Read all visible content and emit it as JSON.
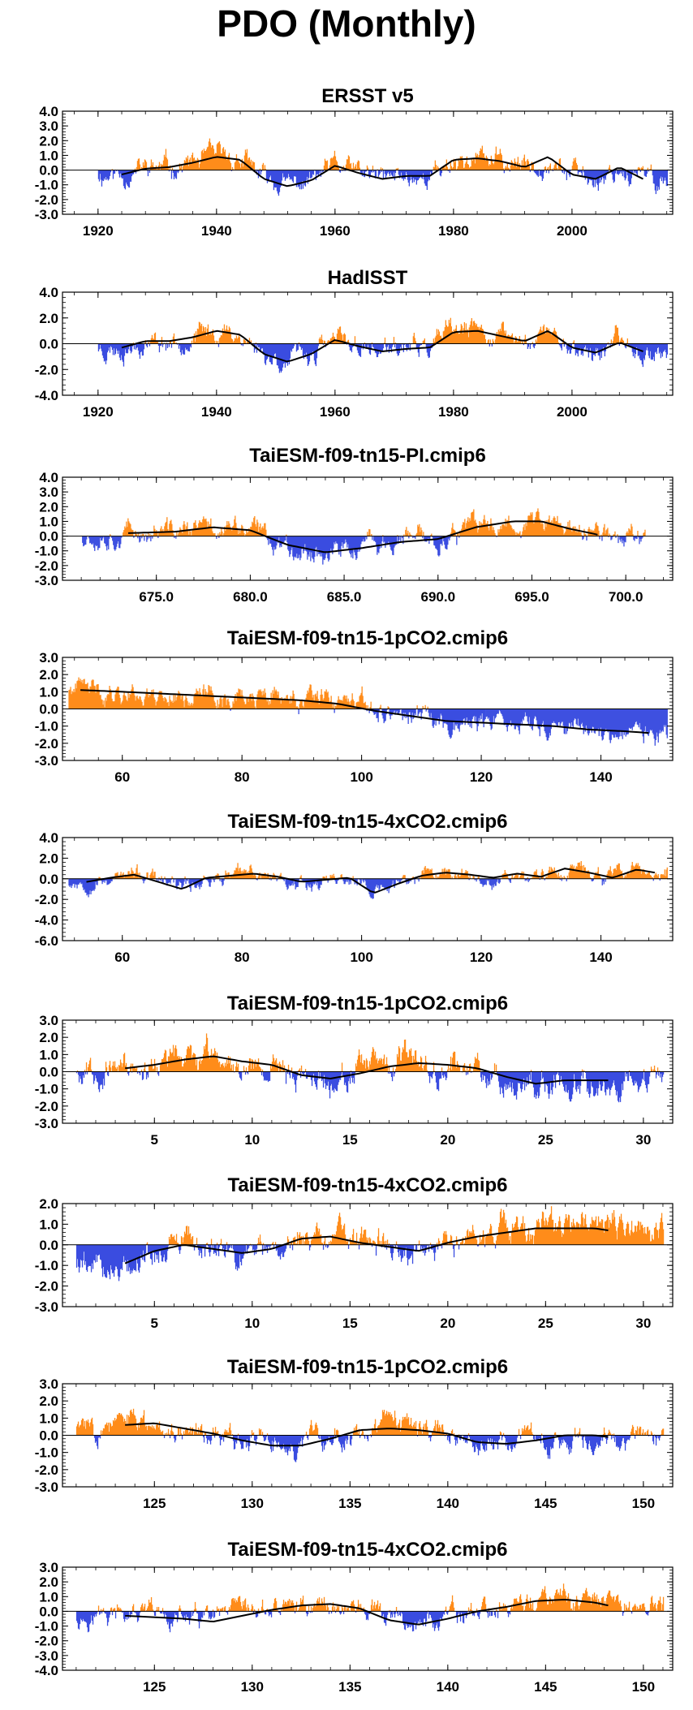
{
  "page": {
    "title": "PDO (Monthly)"
  },
  "colors": {
    "positive": "#ff8c1a",
    "negative": "#3a4de0",
    "smooth": "#000000",
    "axis": "#000000"
  },
  "chart_data": [
    {
      "type": "area",
      "title": "ERSST v5",
      "xlabel": "",
      "ylabel": "",
      "xlim": [
        1914,
        2017
      ],
      "ylim": [
        -3.0,
        4.0
      ],
      "yticks": [
        -3.0,
        -2.0,
        -1.0,
        0.0,
        1.0,
        2.0,
        3.0,
        4.0
      ],
      "ytick_labels": [
        "-3.0",
        "-2.0",
        "-1.0",
        "0.0",
        "1.0",
        "2.0",
        "3.0",
        "4.0"
      ],
      "xticks": [
        1920,
        1940,
        1960,
        1980,
        2000
      ],
      "xtick_labels": [
        "1920",
        "1940",
        "1960",
        "1980",
        "2000"
      ],
      "data_start": 1920,
      "data_end": 2016,
      "amplitude": 1.0,
      "seed": 11,
      "smooth_x": [
        1924,
        1928,
        1932,
        1936,
        1940,
        1944,
        1948,
        1952,
        1956,
        1960,
        1964,
        1968,
        1972,
        1976,
        1980,
        1984,
        1988,
        1992,
        1996,
        2000,
        2004,
        2008,
        2012
      ],
      "smooth_y": [
        -0.3,
        0.1,
        0.2,
        0.5,
        0.9,
        0.7,
        -0.6,
        -1.1,
        -0.7,
        0.3,
        -0.2,
        -0.6,
        -0.4,
        -0.4,
        0.7,
        0.8,
        0.6,
        0.2,
        0.9,
        -0.3,
        -0.6,
        0.2,
        -0.6
      ]
    },
    {
      "type": "area",
      "title": "HadISST",
      "xlabel": "",
      "ylabel": "",
      "xlim": [
        1914,
        2017
      ],
      "ylim": [
        -4.0,
        4.0
      ],
      "yticks": [
        -4.0,
        -2.0,
        0.0,
        2.0,
        4.0
      ],
      "ytick_labels": [
        "-4.0",
        "-2.0",
        "0.0",
        "2.0",
        "4.0"
      ],
      "xticks": [
        1920,
        1940,
        1960,
        1980,
        2000
      ],
      "xtick_labels": [
        "1920",
        "1940",
        "1960",
        "1980",
        "2000"
      ],
      "data_start": 1920,
      "data_end": 2016,
      "amplitude": 1.1,
      "seed": 23,
      "smooth_x": [
        1924,
        1928,
        1932,
        1936,
        1940,
        1944,
        1948,
        1952,
        1956,
        1960,
        1964,
        1968,
        1972,
        1976,
        1980,
        1984,
        1988,
        1992,
        1996,
        2000,
        2004,
        2008,
        2012
      ],
      "smooth_y": [
        -0.3,
        0.2,
        0.2,
        0.5,
        1.0,
        0.7,
        -0.8,
        -1.4,
        -0.8,
        0.3,
        -0.2,
        -0.6,
        -0.4,
        -0.3,
        0.9,
        1.0,
        0.6,
        0.2,
        1.0,
        -0.3,
        -0.7,
        0.1,
        -0.6
      ]
    },
    {
      "type": "area",
      "title": "TaiESM-f09-tn15-PI.cmip6",
      "xlabel": "",
      "ylabel": "",
      "xlim": [
        670.0,
        702.5
      ],
      "ylim": [
        -3.0,
        4.0
      ],
      "yticks": [
        -3.0,
        -2.0,
        -1.0,
        0.0,
        1.0,
        2.0,
        3.0,
        4.0
      ],
      "ytick_labels": [
        "-3.0",
        "-2.0",
        "-1.0",
        "0.0",
        "1.0",
        "2.0",
        "3.0",
        "4.0"
      ],
      "xticks": [
        675.0,
        680.0,
        685.0,
        690.0,
        695.0,
        700.0
      ],
      "xtick_labels": [
        "675.0",
        "680.0",
        "685.0",
        "690.0",
        "695.0",
        "700.0"
      ],
      "data_start": 671.0,
      "data_end": 701.0,
      "amplitude": 1.0,
      "seed": 37,
      "smooth_x": [
        673.5,
        676,
        678,
        680,
        682,
        684,
        686,
        688,
        690,
        692,
        694,
        695.5,
        697,
        698.5
      ],
      "smooth_y": [
        0.2,
        0.3,
        0.6,
        0.4,
        -0.6,
        -1.1,
        -0.8,
        -0.4,
        -0.2,
        0.6,
        1.0,
        1.0,
        0.5,
        0.1
      ]
    },
    {
      "type": "area",
      "title": "TaiESM-f09-tn15-1pCO2.cmip6",
      "xlabel": "",
      "ylabel": "",
      "xlim": [
        50,
        152
      ],
      "ylim": [
        -3.0,
        3.0
      ],
      "yticks": [
        -3.0,
        -2.0,
        -1.0,
        0.0,
        1.0,
        2.0,
        3.0
      ],
      "ytick_labels": [
        "-3.0",
        "-2.0",
        "-1.0",
        "0.0",
        "1.0",
        "2.0",
        "3.0"
      ],
      "xticks": [
        60,
        80,
        100,
        120,
        140
      ],
      "xtick_labels": [
        "60",
        "80",
        "100",
        "120",
        "140"
      ],
      "data_start": 51,
      "data_end": 151,
      "amplitude": 0.8,
      "seed": 41,
      "smooth_x": [
        53,
        60,
        66,
        72,
        78,
        84,
        90,
        96,
        102,
        108,
        114,
        120,
        126,
        132,
        138,
        144,
        148
      ],
      "smooth_y": [
        1.1,
        1.0,
        0.9,
        0.8,
        0.7,
        0.6,
        0.5,
        0.3,
        -0.1,
        -0.4,
        -0.7,
        -0.8,
        -0.9,
        -1.0,
        -1.2,
        -1.3,
        -1.4
      ]
    },
    {
      "type": "area",
      "title": "TaiESM-f09-tn15-4xCO2.cmip6",
      "xlabel": "",
      "ylabel": "",
      "xlim": [
        50,
        152
      ],
      "ylim": [
        -6.0,
        4.0
      ],
      "yticks": [
        -6.0,
        -4.0,
        -2.0,
        0.0,
        2.0,
        4.0
      ],
      "ytick_labels": [
        "-6.0",
        "-4.0",
        "-2.0",
        "0.0",
        "2.0",
        "4.0"
      ],
      "xticks": [
        60,
        80,
        100,
        120,
        140
      ],
      "xtick_labels": [
        "60",
        "80",
        "100",
        "120",
        "140"
      ],
      "data_start": 51,
      "data_end": 151,
      "amplitude": 1.0,
      "seed": 53,
      "smooth_x": [
        54,
        58,
        62,
        66,
        70,
        74,
        78,
        82,
        86,
        90,
        94,
        98,
        102,
        106,
        110,
        114,
        118,
        122,
        126,
        130,
        134,
        138,
        142,
        146,
        149
      ],
      "smooth_y": [
        -0.3,
        0.1,
        0.4,
        -0.3,
        -1.0,
        0.1,
        0.3,
        0.5,
        0.2,
        -0.3,
        -0.1,
        0.1,
        -1.4,
        -0.5,
        0.3,
        0.6,
        0.4,
        0.1,
        0.5,
        0.2,
        1.0,
        0.6,
        0.1,
        0.9,
        0.6
      ]
    },
    {
      "type": "area",
      "title": "TaiESM-f09-tn15-1pCO2.cmip6",
      "xlabel": "",
      "ylabel": "",
      "xlim": [
        0.3,
        31.5
      ],
      "ylim": [
        -3.0,
        3.0
      ],
      "yticks": [
        -3.0,
        -2.0,
        -1.0,
        0.0,
        1.0,
        2.0,
        3.0
      ],
      "ytick_labels": [
        "-3.0",
        "-2.0",
        "-1.0",
        "0.0",
        "1.0",
        "2.0",
        "3.0"
      ],
      "xticks": [
        5,
        10,
        15,
        20,
        25,
        30
      ],
      "xtick_labels": [
        "5",
        "10",
        "15",
        "20",
        "25",
        "30"
      ],
      "data_start": 1.0,
      "data_end": 31.0,
      "amplitude": 1.1,
      "seed": 67,
      "smooth_x": [
        3.5,
        5,
        6.5,
        8,
        9.5,
        11,
        12.5,
        14,
        15.5,
        17,
        18.5,
        20,
        21.5,
        23,
        24.5,
        26,
        27.5,
        28.2
      ],
      "smooth_y": [
        0.2,
        0.4,
        0.7,
        0.9,
        0.6,
        0.4,
        -0.2,
        -0.4,
        -0.1,
        0.3,
        0.5,
        0.4,
        0.2,
        -0.3,
        -0.7,
        -0.5,
        -0.5,
        -0.5
      ]
    },
    {
      "type": "area",
      "title": "TaiESM-f09-tn15-4xCO2.cmip6",
      "xlabel": "",
      "ylabel": "",
      "xlim": [
        0.3,
        31.5
      ],
      "ylim": [
        -3.0,
        2.0
      ],
      "yticks": [
        -3.0,
        -2.0,
        -1.0,
        0.0,
        1.0,
        2.0
      ],
      "ytick_labels": [
        "-3.0",
        "-2.0",
        "-1.0",
        "0.0",
        "1.0",
        "2.0"
      ],
      "xticks": [
        5,
        10,
        15,
        20,
        25,
        30
      ],
      "xtick_labels": [
        "5",
        "10",
        "15",
        "20",
        "25",
        "30"
      ],
      "data_start": 1.0,
      "data_end": 31.0,
      "amplitude": 0.9,
      "seed": 79,
      "smooth_x": [
        3.5,
        5,
        6.5,
        8,
        9.5,
        11,
        12.5,
        14,
        15.5,
        17,
        18.5,
        20,
        21.5,
        23,
        24.5,
        26,
        27.5,
        28.2
      ],
      "smooth_y": [
        -0.9,
        -0.3,
        0.0,
        -0.2,
        -0.4,
        -0.2,
        0.3,
        0.4,
        0.1,
        -0.1,
        -0.3,
        0.1,
        0.4,
        0.6,
        0.8,
        0.8,
        0.8,
        0.7
      ]
    },
    {
      "type": "area",
      "title": "TaiESM-f09-tn15-1pCO2.cmip6",
      "xlabel": "",
      "ylabel": "",
      "xlim": [
        120.3,
        151.5
      ],
      "ylim": [
        -3.0,
        3.0
      ],
      "yticks": [
        -3.0,
        -2.0,
        -1.0,
        0.0,
        1.0,
        2.0,
        3.0
      ],
      "ytick_labels": [
        "-3.0",
        "-2.0",
        "-1.0",
        "0.0",
        "1.0",
        "2.0",
        "3.0"
      ],
      "xticks": [
        125,
        130,
        135,
        140,
        145,
        150
      ],
      "xtick_labels": [
        "125",
        "130",
        "135",
        "140",
        "145",
        "150"
      ],
      "data_start": 121.0,
      "data_end": 151.0,
      "amplitude": 0.9,
      "seed": 83,
      "smooth_x": [
        123.5,
        125,
        126.5,
        128,
        129.5,
        131,
        132.5,
        134,
        135.5,
        137,
        138.5,
        140,
        141.5,
        143,
        144.5,
        146,
        147.5,
        148.2
      ],
      "smooth_y": [
        0.6,
        0.7,
        0.4,
        0.1,
        -0.3,
        -0.6,
        -0.6,
        -0.2,
        0.3,
        0.4,
        0.3,
        0.1,
        -0.4,
        -0.5,
        -0.3,
        0.0,
        0.0,
        -0.1
      ]
    },
    {
      "type": "area",
      "title": "TaiESM-f09-tn15-4xCO2.cmip6",
      "xlabel": "",
      "ylabel": "",
      "xlim": [
        120.3,
        151.5
      ],
      "ylim": [
        -4.0,
        3.0
      ],
      "yticks": [
        -4.0,
        -3.0,
        -2.0,
        -1.0,
        0.0,
        1.0,
        2.0,
        3.0
      ],
      "ytick_labels": [
        "-4.0",
        "-3.0",
        "-2.0",
        "-1.0",
        "0.0",
        "1.0",
        "2.0",
        "3.0"
      ],
      "xticks": [
        125,
        130,
        135,
        140,
        145,
        150
      ],
      "xtick_labels": [
        "125",
        "130",
        "135",
        "140",
        "145",
        "150"
      ],
      "data_start": 121.0,
      "data_end": 151.0,
      "amplitude": 1.0,
      "seed": 97,
      "smooth_x": [
        123.5,
        125,
        126.5,
        128,
        129.5,
        131,
        132.5,
        134,
        135.5,
        137,
        138.5,
        140,
        141.5,
        143,
        144.5,
        146,
        147.5,
        148.2
      ],
      "smooth_y": [
        -0.3,
        -0.4,
        -0.5,
        -0.7,
        -0.3,
        0.1,
        0.4,
        0.5,
        0.2,
        -0.6,
        -0.9,
        -0.5,
        0.0,
        0.3,
        0.7,
        0.8,
        0.6,
        0.4
      ]
    }
  ]
}
